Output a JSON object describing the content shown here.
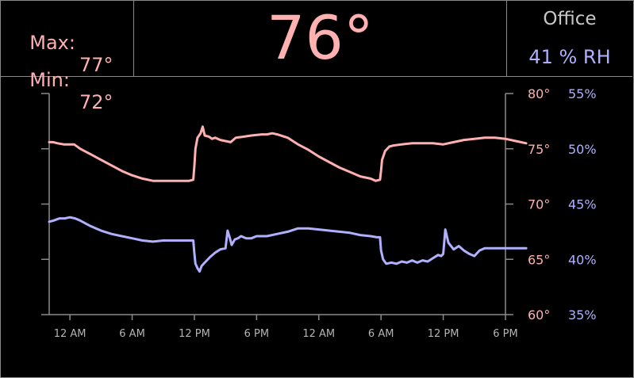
{
  "header": {
    "max_label": "Max:",
    "max_value": "77°",
    "min_label": "Min:",
    "min_value": "72°",
    "current_temp": "76°",
    "room_name": "Office",
    "humidity": "41 % RH"
  },
  "colors": {
    "temperature": "#ffb0b0",
    "humidity": "#b0b0ff",
    "axis": "#8a8a8a",
    "tick_label": "#b4b4b4",
    "title": "#c8c8c8"
  },
  "chart_data": {
    "type": "line",
    "x_unit": "hours",
    "x_range": [
      -2,
      42
    ],
    "x_ticks": [
      {
        "x": 0,
        "label": "12 AM"
      },
      {
        "x": 6,
        "label": "6 AM"
      },
      {
        "x": 12,
        "label": "12 PM"
      },
      {
        "x": 18,
        "label": "6 PM"
      },
      {
        "x": 24,
        "label": "12 AM"
      },
      {
        "x": 30,
        "label": "6 AM"
      },
      {
        "x": 36,
        "label": "12 PM"
      },
      {
        "x": 42,
        "label": "6 PM"
      }
    ],
    "y_left_range": [
      60,
      80
    ],
    "y_right_range": [
      35,
      55
    ],
    "y_left_ticks": [
      80,
      75,
      70,
      65,
      60
    ],
    "y_right_ticks": [
      55,
      50,
      45,
      40,
      35
    ],
    "y_left_tick_labels": [
      "80°",
      "75°",
      "70°",
      "65°",
      "60°"
    ],
    "y_right_tick_labels": [
      "55%",
      "50%",
      "45%",
      "40%",
      "35%"
    ],
    "grid": false,
    "series": [
      {
        "axis": "left",
        "color": "#ffb0b0",
        "x": [
          -2.0,
          -1.6,
          -1.2,
          -0.6,
          0.0,
          0.4,
          1.0,
          2.0,
          3.0,
          4.0,
          5.0,
          6.0,
          7.0,
          8.0,
          9.0,
          10.0,
          11.0,
          11.5,
          11.9,
          12.0,
          12.1,
          12.3,
          12.6,
          12.8,
          13.0,
          13.4,
          13.7,
          14.0,
          14.5,
          15.0,
          15.5,
          16.0,
          16.8,
          17.5,
          18.5,
          19.0,
          19.5,
          20.0,
          21.0,
          22.0,
          23.0,
          24.0,
          25.0,
          26.0,
          27.0,
          28.0,
          29.0,
          29.5,
          29.9,
          30.0,
          30.1,
          30.4,
          30.8,
          31.2,
          32.0,
          33.0,
          34.0,
          35.0,
          36.0,
          37.0,
          38.0,
          39.0,
          40.0,
          41.0,
          42.0,
          43.0,
          44.0
        ],
        "y": [
          75.6,
          75.6,
          75.5,
          75.4,
          75.4,
          75.4,
          75.0,
          74.5,
          74.0,
          73.5,
          73.0,
          72.6,
          72.3,
          72.1,
          72.1,
          72.1,
          72.1,
          72.1,
          72.2,
          73.5,
          75.0,
          76.0,
          76.4,
          77.0,
          76.2,
          76.1,
          75.9,
          76.0,
          75.8,
          75.7,
          75.6,
          76.0,
          76.1,
          76.2,
          76.3,
          76.3,
          76.4,
          76.3,
          76.0,
          75.4,
          74.9,
          74.3,
          73.8,
          73.3,
          72.9,
          72.5,
          72.3,
          72.1,
          72.2,
          73.0,
          74.0,
          74.8,
          75.2,
          75.3,
          75.4,
          75.5,
          75.5,
          75.5,
          75.4,
          75.6,
          75.8,
          75.9,
          76.0,
          76.0,
          75.9,
          75.7,
          75.5
        ]
      },
      {
        "axis": "right",
        "color": "#b0b0ff",
        "x": [
          -2.0,
          -1.6,
          -1.0,
          -0.5,
          0.0,
          0.5,
          1.0,
          2.0,
          3.0,
          4.0,
          5.0,
          6.0,
          7.0,
          8.0,
          9.0,
          10.0,
          11.0,
          11.5,
          11.9,
          12.0,
          12.1,
          12.3,
          12.5,
          12.7,
          13.0,
          13.5,
          14.0,
          14.5,
          15.0,
          15.2,
          15.4,
          15.6,
          15.9,
          16.2,
          16.5,
          17.0,
          17.5,
          18.0,
          18.5,
          19.0,
          20.0,
          21.0,
          22.0,
          23.0,
          24.0,
          25.0,
          26.0,
          27.0,
          28.0,
          29.0,
          29.6,
          29.9,
          30.0,
          30.2,
          30.5,
          31.0,
          31.5,
          32.0,
          32.5,
          33.0,
          33.5,
          34.0,
          34.5,
          35.0,
          35.5,
          35.8,
          36.0,
          36.2,
          36.5,
          37.0,
          37.5,
          38.0,
          38.5,
          39.0,
          39.5,
          40.0,
          40.5,
          41.0,
          42.0,
          43.0,
          44.0
        ],
        "y": [
          43.4,
          43.5,
          43.7,
          43.7,
          43.8,
          43.7,
          43.5,
          43.0,
          42.6,
          42.3,
          42.1,
          41.9,
          41.7,
          41.6,
          41.7,
          41.7,
          41.7,
          41.7,
          41.7,
          40.5,
          39.6,
          39.2,
          38.9,
          39.4,
          39.7,
          40.2,
          40.6,
          40.9,
          41.0,
          42.6,
          42.0,
          41.3,
          41.8,
          41.9,
          42.1,
          41.9,
          41.9,
          42.1,
          42.1,
          42.1,
          42.3,
          42.5,
          42.8,
          42.8,
          42.7,
          42.6,
          42.5,
          42.4,
          42.2,
          42.1,
          42.0,
          42.0,
          40.8,
          40.0,
          39.6,
          39.7,
          39.6,
          39.8,
          39.7,
          39.9,
          39.7,
          39.9,
          39.8,
          40.1,
          40.4,
          40.3,
          40.5,
          42.7,
          41.5,
          40.9,
          41.2,
          40.8,
          40.5,
          40.3,
          40.8,
          41.0,
          41.0,
          41.0,
          41.0,
          41.0,
          41.0
        ]
      }
    ]
  }
}
